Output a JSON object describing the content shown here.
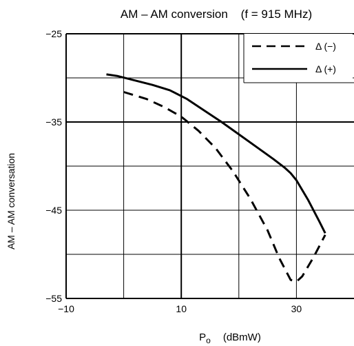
{
  "chart_data": {
    "type": "line",
    "title": "AM – AM conversion    (f = 915 MHz)",
    "ylabel": "AM – AM conversation",
    "xlabel_main": "P",
    "xlabel_sub": "o",
    "xlabel_unit": "(dBmW)",
    "xlim": [
      -10,
      40
    ],
    "ylim": [
      -55,
      -25
    ],
    "x_ticks": [
      -10,
      10,
      30
    ],
    "x_tick_labels": [
      "−10",
      "10",
      "30"
    ],
    "y_ticks": [
      -25,
      -35,
      -45,
      -55
    ],
    "y_tick_labels": [
      "−25",
      "−35",
      "−45",
      "−55"
    ],
    "x_grid": [
      0,
      10,
      20,
      30
    ],
    "y_grid": [
      -30,
      -35,
      -40,
      -45,
      -50
    ],
    "grid": true,
    "legend_position": "top-right",
    "series": [
      {
        "name": "Δ (−)",
        "style": "dashed",
        "x": [
          0,
          4,
          7,
          10,
          13,
          16,
          19,
          22,
          25,
          27,
          29,
          30,
          31,
          33,
          35
        ],
        "y": [
          -31.6,
          -32.4,
          -33.3,
          -34.4,
          -36.0,
          -38.0,
          -40.6,
          -43.7,
          -47.3,
          -50.4,
          -52.9,
          -53.1,
          -52.5,
          -50.3,
          -47.8
        ]
      },
      {
        "name": "Δ (+)",
        "style": "solid",
        "x": [
          -3,
          -1,
          2,
          5,
          8,
          11,
          14,
          17,
          20,
          23,
          26,
          28,
          29,
          30,
          32,
          34,
          35
        ],
        "y": [
          -29.6,
          -29.8,
          -30.3,
          -30.8,
          -31.4,
          -32.4,
          -33.7,
          -35.0,
          -36.4,
          -37.8,
          -39.2,
          -40.2,
          -40.8,
          -41.6,
          -43.8,
          -46.3,
          -47.6
        ]
      }
    ],
    "colors": {
      "line": "#000000",
      "grid": "#000000",
      "background": "#ffffff"
    }
  }
}
